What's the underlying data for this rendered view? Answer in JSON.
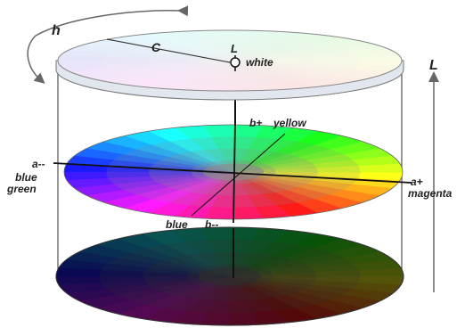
{
  "labels": {
    "hue": "h",
    "chroma": "C",
    "lightness_top": "L",
    "white": "white",
    "lightness_axis": "L",
    "b_plus": "b+",
    "yellow": "yellow",
    "a_minus": "a--",
    "blue_green_line1": "blue",
    "blue_green_line2": "green",
    "a_plus": "a+",
    "magenta": "magenta",
    "blue": "blue",
    "b_minus": "b--"
  },
  "colors": {
    "outline": "#555555",
    "axis": "#111111",
    "arrow": "#666666"
  },
  "disks": {
    "top_lightness": 94,
    "middle_lightness": 55,
    "bottom_lightness": 18
  }
}
